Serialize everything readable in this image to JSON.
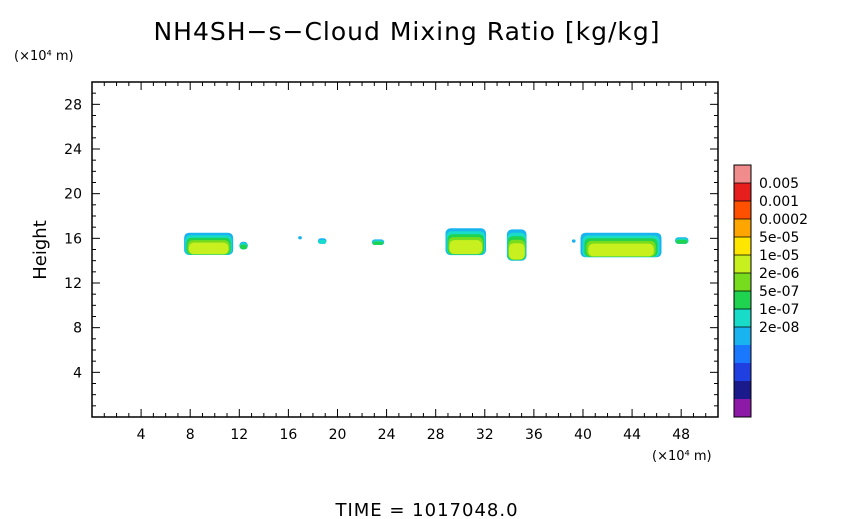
{
  "chart_data": {
    "type": "heatmap",
    "title": "NH4SH−s−Cloud Mixing Ratio [kg/kg]",
    "ylabel": "Height",
    "yunit": "(×10⁴ m)",
    "xunit": "(×10⁴ m)",
    "xlim": [
      0,
      51
    ],
    "ylim": [
      0,
      30
    ],
    "xticks": [
      4,
      8,
      12,
      16,
      20,
      24,
      28,
      32,
      36,
      40,
      44,
      48
    ],
    "yticks": [
      4,
      8,
      12,
      16,
      20,
      24,
      28
    ],
    "footer": "TIME  =  1017048.0",
    "colorbar": {
      "labels": [
        "0.005",
        "0.001",
        "0.0002",
        "5e-05",
        "1e-05",
        "2e-06",
        "5e-07",
        "1e-07",
        "2e-08"
      ],
      "colors": [
        "#8c1aa6",
        "#1a1a8c",
        "#1f3fe0",
        "#1a78ff",
        "#19b4f0",
        "#18dcc8",
        "#1fd250",
        "#78dc1e",
        "#c8f01e",
        "#ffe600",
        "#ffa500",
        "#ff5000",
        "#e61e1e",
        "#f08c8c"
      ]
    },
    "cloud_regions": [
      {
        "x": [
          7.5,
          11.5
        ],
        "y": [
          14.5,
          16.5
        ],
        "max": "1e-05"
      },
      {
        "x": [
          12.0,
          12.7
        ],
        "y": [
          15.0,
          15.7
        ],
        "max": "5e-07"
      },
      {
        "x": [
          16.8,
          17.1
        ],
        "y": [
          15.9,
          16.2
        ],
        "max": "2e-08"
      },
      {
        "x": [
          18.4,
          19.1
        ],
        "y": [
          15.5,
          16.0
        ],
        "max": "1e-07"
      },
      {
        "x": [
          22.8,
          23.8
        ],
        "y": [
          15.4,
          15.9
        ],
        "max": "5e-07"
      },
      {
        "x": [
          28.8,
          32.1
        ],
        "y": [
          14.5,
          16.9
        ],
        "max": "1e-05"
      },
      {
        "x": [
          33.8,
          35.4
        ],
        "y": [
          14.0,
          16.8
        ],
        "max": "1e-05"
      },
      {
        "x": [
          39.1,
          39.4
        ],
        "y": [
          15.6,
          15.9
        ],
        "max": "2e-08"
      },
      {
        "x": [
          39.8,
          46.4
        ],
        "y": [
          14.3,
          16.5
        ],
        "max": "1e-05"
      },
      {
        "x": [
          47.5,
          48.6
        ],
        "y": [
          15.5,
          16.1
        ],
        "max": "5e-07"
      }
    ]
  }
}
